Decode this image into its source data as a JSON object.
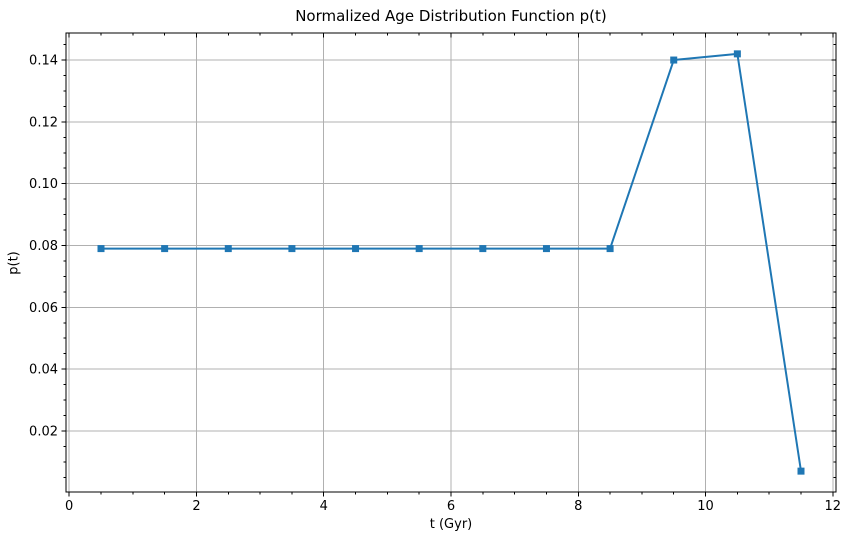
{
  "figure": {
    "background_color": "#ffffff"
  },
  "chart_data": {
    "type": "line",
    "title": "Normalized Age Distribution Function p(t)",
    "xlabel": "t (Gyr)",
    "ylabel": "p(t)",
    "x": [
      0.5,
      1.5,
      2.5,
      3.5,
      4.5,
      5.5,
      6.5,
      7.5,
      8.5,
      9.5,
      10.5,
      11.5
    ],
    "y": [
      0.079,
      0.079,
      0.079,
      0.079,
      0.079,
      0.079,
      0.079,
      0.079,
      0.079,
      0.14,
      0.142,
      0.007
    ],
    "xlim": [
      -0.05,
      12.05
    ],
    "ylim": [
      0.00025,
      0.14875
    ],
    "xticks": [
      0,
      2,
      4,
      6,
      8,
      10,
      12
    ],
    "yticks": [
      0.02,
      0.04,
      0.06,
      0.08,
      0.1,
      0.12,
      0.14
    ],
    "ytick_decimals": 2,
    "xminor_step": 0.5,
    "yminor_step": 0.005,
    "grid": true,
    "legend_position": "none",
    "line_color": "#1f77b4",
    "marker": "square",
    "marker_size": 7,
    "line_width": 2,
    "grid_color": "#b0b0b0",
    "spine_color": "#000000",
    "tick_color": "#000000"
  }
}
